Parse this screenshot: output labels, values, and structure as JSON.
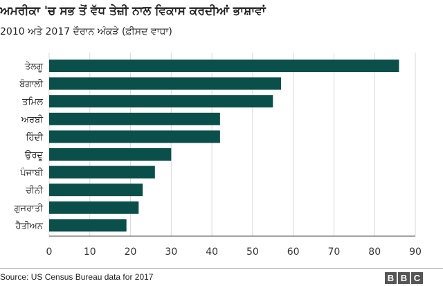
{
  "header": {
    "title": "ਅਮਰੀਕਾ 'ਚ ਸਭ ਤੋਂ ਵੱਧ ਤੇਜ਼ੀ ਨਾਲ ਵਿਕਾਸ ਕਰਦੀਆਂ ਭਾਸ਼ਾਵਾਂ",
    "subtitle": "2010 ਅਤੇ 2017 ਦੌਰਾਨ ਅੰਕੜੇ (ਫ਼ੀਸਦ ਵਾਧਾ)"
  },
  "chart_data": {
    "type": "bar",
    "orientation": "horizontal",
    "title": "ਅਮਰੀਕਾ 'ਚ ਸਭ ਤੋਂ ਵੱਧ ਤੇਜ਼ੀ ਨਾਲ ਵਿਕਾਸ ਕਰਦੀਆਂ ਭਾਸ਼ਾਵਾਂ",
    "subtitle": "2010 ਅਤੇ 2017 ਦੌਰਾਨ ਅੰਕੜੇ (ਫ਼ੀਸਦ ਵਾਧਾ)",
    "categories": [
      "ਤੇਲਗੂ",
      "ਬੰਗਾਲੀ",
      "ਤਮਿਲ",
      "ਅਰਬੀ",
      "ਹਿੰਦੀ",
      "ਉਰਦੂ",
      "ਪੰਜਾਬੀ",
      "ਚੀਨੀ",
      "ਗੁਜਰਾਤੀ",
      "ਹੈਤੀਅਨ"
    ],
    "values": [
      86,
      57,
      55,
      42,
      42,
      30,
      26,
      23,
      22,
      19
    ],
    "xlim": [
      0,
      90
    ],
    "xticks": [
      0,
      10,
      20,
      30,
      40,
      50,
      60,
      70,
      80,
      90
    ],
    "grid": true,
    "bar_color": "#0b4f4a",
    "xlabel": "",
    "ylabel": ""
  },
  "footer": {
    "source": "Source: US Census Bureau data for 2017",
    "logo_letters": [
      "B",
      "B",
      "C"
    ]
  },
  "colors": {
    "bar": "#0b4f4a",
    "grid": "#d9d9d9",
    "logo": "#555555"
  }
}
